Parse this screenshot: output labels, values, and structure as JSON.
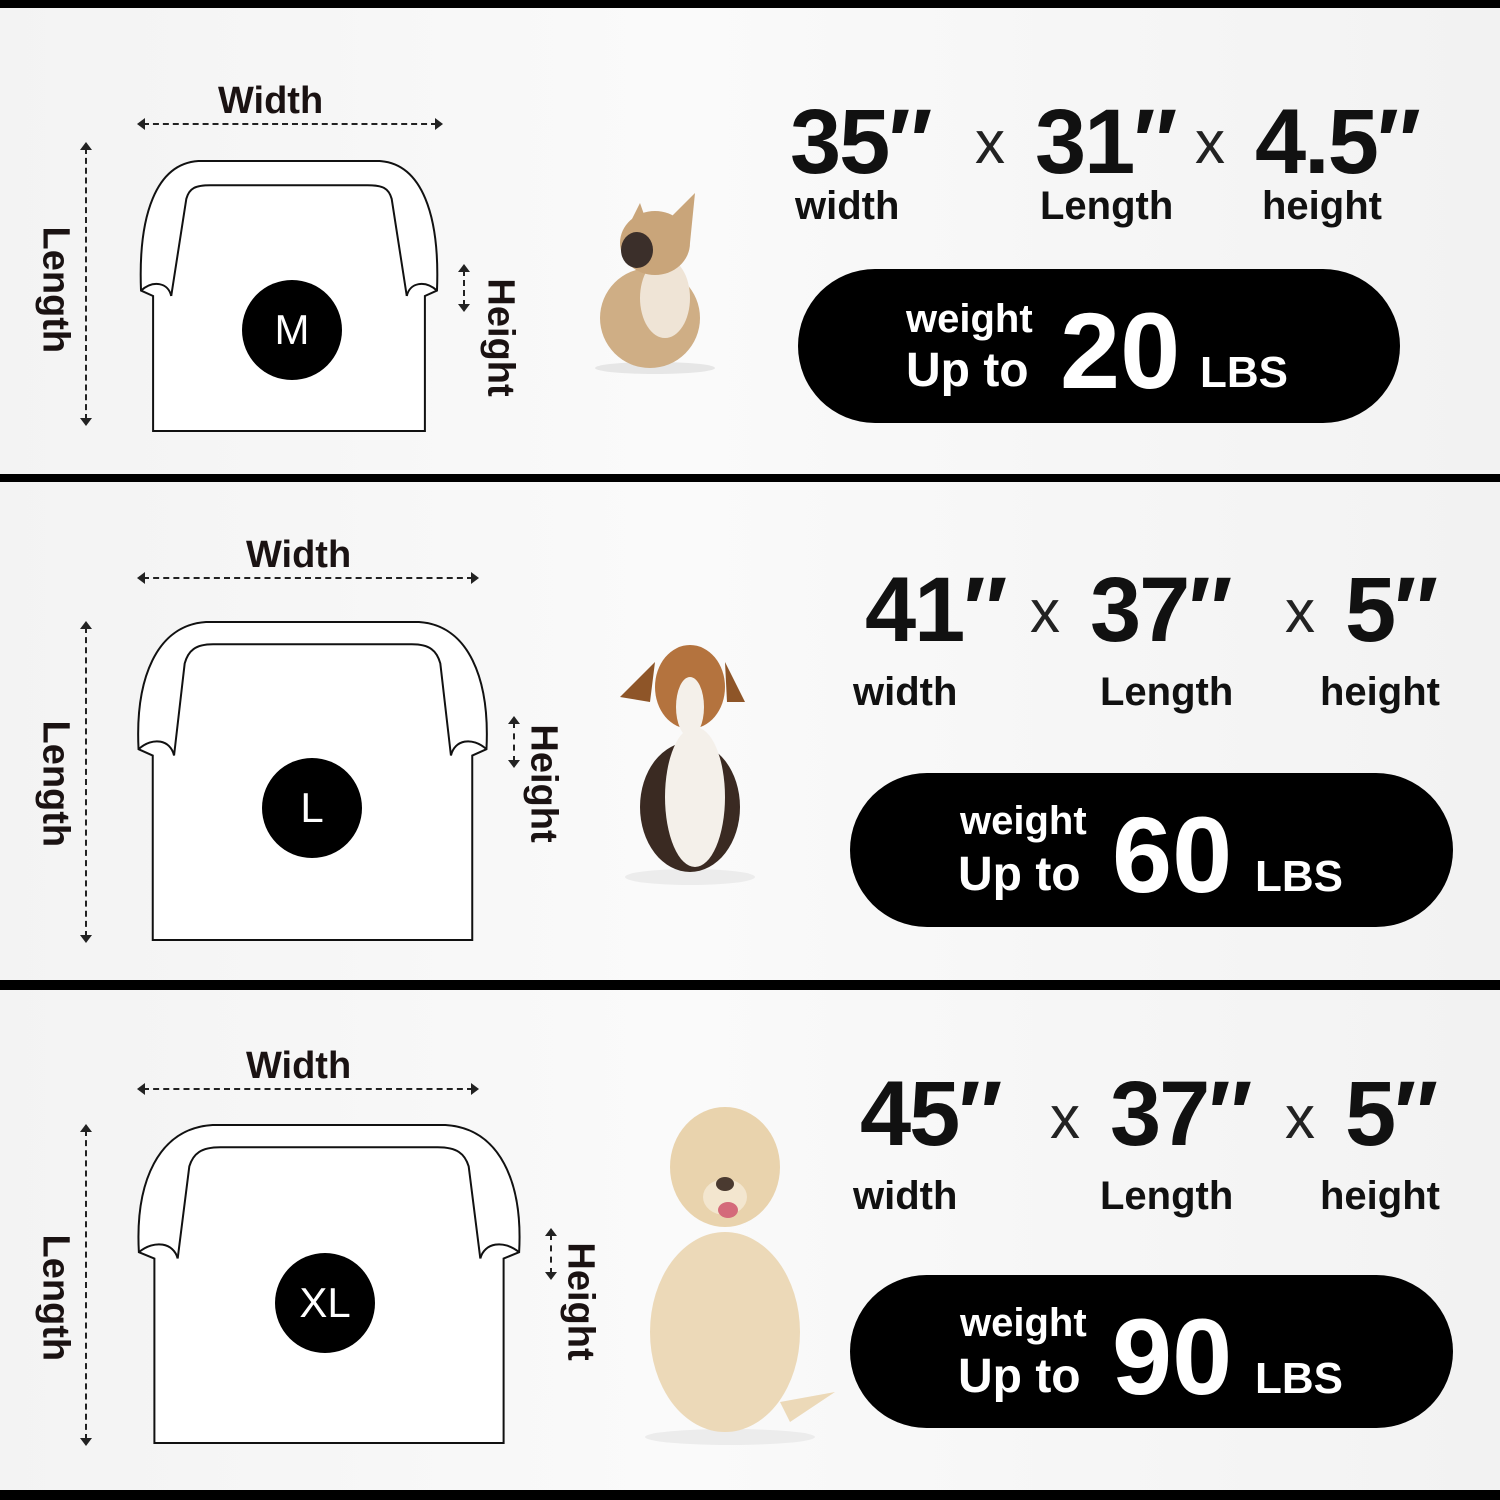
{
  "labels": {
    "width": "Width",
    "length": "Length",
    "height": "Height"
  },
  "panels": [
    {
      "size": "M",
      "dims": [
        {
          "value": "35″",
          "label": "width"
        },
        {
          "value": "31″",
          "label": "Length"
        },
        {
          "value": "4.5″",
          "label": "height"
        }
      ],
      "separator": "x",
      "weight_label": "weight",
      "up_to": "Up to",
      "weight": "20",
      "unit": "LBS",
      "dog": "french-bulldog"
    },
    {
      "size": "L",
      "dims": [
        {
          "value": "41″",
          "label": "width"
        },
        {
          "value": "37″",
          "label": "Length"
        },
        {
          "value": "5″",
          "label": "height"
        }
      ],
      "separator": "x",
      "weight_label": "weight",
      "up_to": "Up to",
      "weight": "60",
      "unit": "LBS",
      "dog": "beagle"
    },
    {
      "size": "XL",
      "dims": [
        {
          "value": "45″",
          "label": "width"
        },
        {
          "value": "37″",
          "label": "Length"
        },
        {
          "value": "5″",
          "label": "height"
        }
      ],
      "separator": "x",
      "weight_label": "weight",
      "up_to": "Up to",
      "weight": "90",
      "unit": "LBS",
      "dog": "labrador"
    }
  ]
}
